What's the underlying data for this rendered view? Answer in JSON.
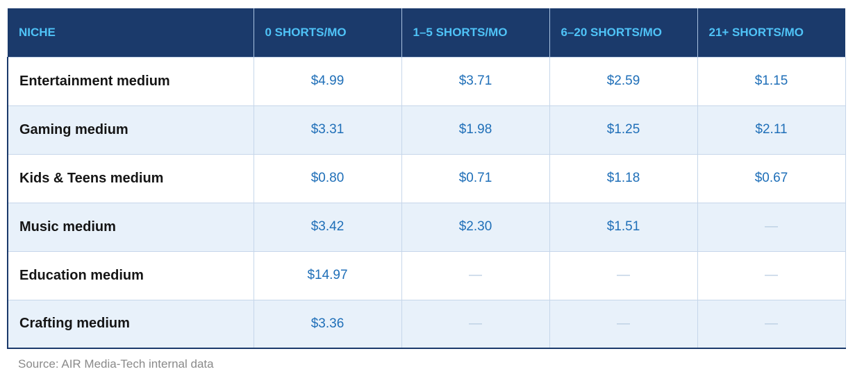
{
  "table": {
    "headers": [
      "NICHE",
      "0 SHORTS/MO",
      "1–5 SHORTS/MO",
      "6–20 SHORTS/MO",
      "21+ SHORTS/MO"
    ],
    "rows": [
      {
        "niche": "Entertainment medium",
        "values": [
          "$4.99",
          "$3.71",
          "$2.59",
          "$1.15"
        ]
      },
      {
        "niche": "Gaming medium",
        "values": [
          "$3.31",
          "$1.98",
          "$1.25",
          "$2.11"
        ]
      },
      {
        "niche": "Kids & Teens medium",
        "values": [
          "$0.80",
          "$0.71",
          "$1.18",
          "$0.67"
        ]
      },
      {
        "niche": "Music medium",
        "values": [
          "$3.42",
          "$2.30",
          "$1.51",
          "—"
        ]
      },
      {
        "niche": "Education medium",
        "values": [
          "$14.97",
          "—",
          "—",
          "—"
        ]
      },
      {
        "niche": "Crafting medium",
        "values": [
          "$3.36",
          "—",
          "—",
          "—"
        ]
      }
    ]
  },
  "source": "Source: AIR Media-Tech internal data",
  "colors": {
    "header_bg": "#1b3a6b",
    "header_text": "#4fc3f7",
    "value_text": "#1f6fb8",
    "stripe_bg": "#e8f1fa"
  }
}
